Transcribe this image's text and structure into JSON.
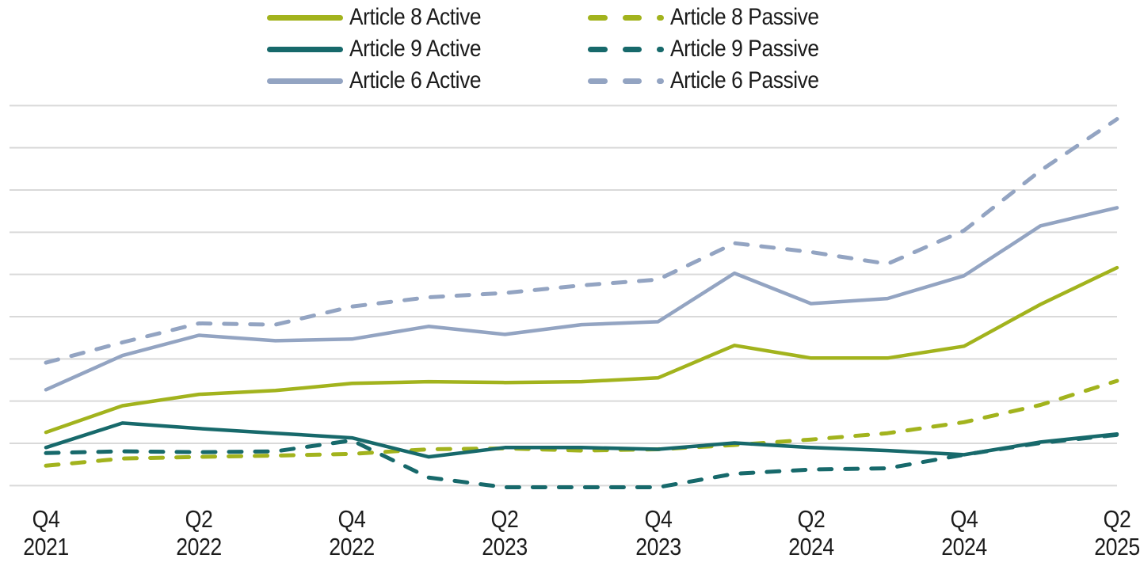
{
  "chart_data": {
    "type": "line",
    "title": "",
    "categories": [
      "Q4 2021",
      "Q1 2022",
      "Q2 2022",
      "Q3 2022",
      "Q4 2022",
      "Q1 2023",
      "Q2 2023",
      "Q3 2023",
      "Q4 2023",
      "Q1 2024",
      "Q2 2024",
      "Q3 2024",
      "Q4 2024",
      "Q1 2025",
      "Q2 2025"
    ],
    "n_points": 15,
    "x_labels": [
      {
        "quarter": "Q4",
        "year": "2021",
        "point_index": 0
      },
      {
        "quarter": "Q2",
        "year": "2022",
        "point_index": 2
      },
      {
        "quarter": "Q4",
        "year": "2022",
        "point_index": 4
      },
      {
        "quarter": "Q2",
        "year": "2023",
        "point_index": 6
      },
      {
        "quarter": "Q4",
        "year": "2023",
        "point_index": 8
      },
      {
        "quarter": "Q2",
        "year": "2024",
        "point_index": 10
      },
      {
        "quarter": "Q4",
        "year": "2024",
        "point_index": 12
      },
      {
        "quarter": "Q2",
        "year": "2025",
        "point_index": 14
      }
    ],
    "series": [
      {
        "name": "Article 8 Active",
        "color": "#a2b31d",
        "style": "solid",
        "values": [
          12.6,
          18.9,
          21.6,
          22.5,
          24.2,
          24.6,
          24.4,
          24.6,
          25.5,
          33.2,
          30.2,
          30.2,
          33.0,
          42.9,
          51.6
        ]
      },
      {
        "name": "Article 9 Active",
        "color": "#17696b",
        "style": "solid",
        "values": [
          9.0,
          14.8,
          13.5,
          12.4,
          11.3,
          6.8,
          9.0,
          9.0,
          8.6,
          10.1,
          9.0,
          8.3,
          7.3,
          10.3,
          12.2
        ]
      },
      {
        "name": "Article 6 Active",
        "color": "#93a4c2",
        "style": "solid",
        "values": [
          22.7,
          30.8,
          35.6,
          34.3,
          34.7,
          37.7,
          35.8,
          38.1,
          38.8,
          50.3,
          43.1,
          44.3,
          49.7,
          61.5,
          65.8
        ]
      },
      {
        "name": "Article 8 Passive",
        "color": "#a2b31d",
        "style": "dashed",
        "values": [
          4.7,
          6.4,
          6.8,
          7.1,
          7.5,
          8.6,
          8.8,
          8.3,
          8.6,
          9.6,
          10.9,
          12.4,
          15.0,
          19.1,
          24.8
        ]
      },
      {
        "name": "Article 9 Passive",
        "color": "#17696b",
        "style": "dashed",
        "values": [
          7.7,
          8.1,
          7.9,
          8.1,
          10.7,
          1.9,
          -0.4,
          -0.4,
          -0.4,
          2.8,
          3.8,
          4.1,
          7.3,
          10.1,
          12.0
        ]
      },
      {
        "name": "Article 6 Passive",
        "color": "#93a4c2",
        "style": "dashed",
        "values": [
          29.1,
          33.9,
          38.4,
          38.1,
          42.4,
          44.6,
          45.6,
          47.4,
          48.8,
          57.4,
          55.3,
          52.5,
          60.4,
          74.6,
          86.8
        ]
      }
    ],
    "y_axis": {
      "tick_labels_visible": false,
      "gridlines": 10,
      "gridline_step": 10,
      "ylim": [
        0,
        90
      ],
      "unit_note": "relative scale, one gridline interval = 10"
    },
    "legend": {
      "position": "top",
      "columns": [
        "Active",
        "Passive"
      ]
    },
    "style": {
      "grid_color": "#d9d9d9",
      "text_color": "#1c1c1c",
      "background": "#ffffff"
    }
  }
}
